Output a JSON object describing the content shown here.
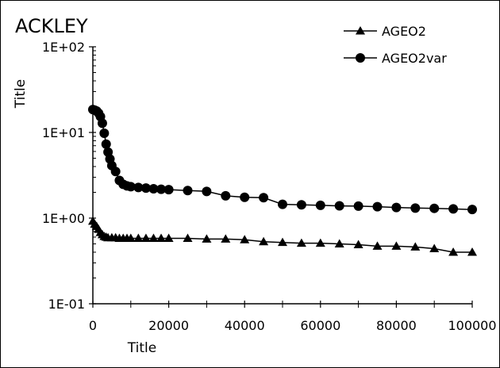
{
  "chart_data": {
    "type": "line",
    "title": "ACKLEY",
    "xlabel": "Title",
    "ylabel": "Title",
    "xlim": [
      0,
      100000
    ],
    "ylim": [
      0.1,
      100
    ],
    "yscale": "log",
    "x_ticks": [
      0,
      20000,
      40000,
      60000,
      80000,
      100000
    ],
    "x_tick_labels": [
      "0",
      "20000",
      "40000",
      "60000",
      "80000",
      "100000"
    ],
    "y_ticks": [
      0.1,
      1,
      10,
      100
    ],
    "y_tick_labels": [
      "1E-01",
      "1E+00",
      "1E+01",
      "1E+02"
    ],
    "grid": false,
    "legend_position": "top-right",
    "series": [
      {
        "name": "AGEO2",
        "marker": "triangle",
        "color": "#000000",
        "x": [
          0,
          500,
          1000,
          1500,
          2000,
          2500,
          3000,
          3500,
          4000,
          5000,
          6000,
          7000,
          8000,
          9000,
          10000,
          12000,
          14000,
          16000,
          18000,
          20000,
          25000,
          30000,
          35000,
          40000,
          45000,
          50000,
          55000,
          60000,
          65000,
          70000,
          75000,
          80000,
          85000,
          90000,
          95000,
          100000
        ],
        "y": [
          0.92,
          0.85,
          0.8,
          0.74,
          0.68,
          0.64,
          0.61,
          0.6,
          0.59,
          0.59,
          0.59,
          0.58,
          0.58,
          0.58,
          0.58,
          0.58,
          0.58,
          0.58,
          0.58,
          0.58,
          0.58,
          0.57,
          0.57,
          0.56,
          0.53,
          0.52,
          0.51,
          0.51,
          0.5,
          0.49,
          0.47,
          0.47,
          0.46,
          0.44,
          0.4,
          0.4
        ]
      },
      {
        "name": "AGEO2var",
        "marker": "circle",
        "color": "#000000",
        "x": [
          0,
          500,
          1000,
          1500,
          2000,
          2500,
          3000,
          3500,
          4000,
          4500,
          5000,
          6000,
          7000,
          8000,
          9000,
          10000,
          12000,
          14000,
          16000,
          18000,
          20000,
          25000,
          30000,
          35000,
          40000,
          45000,
          50000,
          55000,
          60000,
          65000,
          70000,
          75000,
          80000,
          85000,
          90000,
          95000,
          100000
        ],
        "y": [
          18.5,
          18.2,
          17.8,
          16.8,
          15.3,
          12.8,
          9.8,
          7.3,
          5.9,
          4.9,
          4.1,
          3.5,
          2.75,
          2.48,
          2.38,
          2.33,
          2.28,
          2.24,
          2.2,
          2.17,
          2.15,
          2.1,
          2.05,
          1.82,
          1.75,
          1.73,
          1.45,
          1.43,
          1.41,
          1.39,
          1.38,
          1.36,
          1.33,
          1.31,
          1.3,
          1.28,
          1.26
        ]
      }
    ]
  }
}
